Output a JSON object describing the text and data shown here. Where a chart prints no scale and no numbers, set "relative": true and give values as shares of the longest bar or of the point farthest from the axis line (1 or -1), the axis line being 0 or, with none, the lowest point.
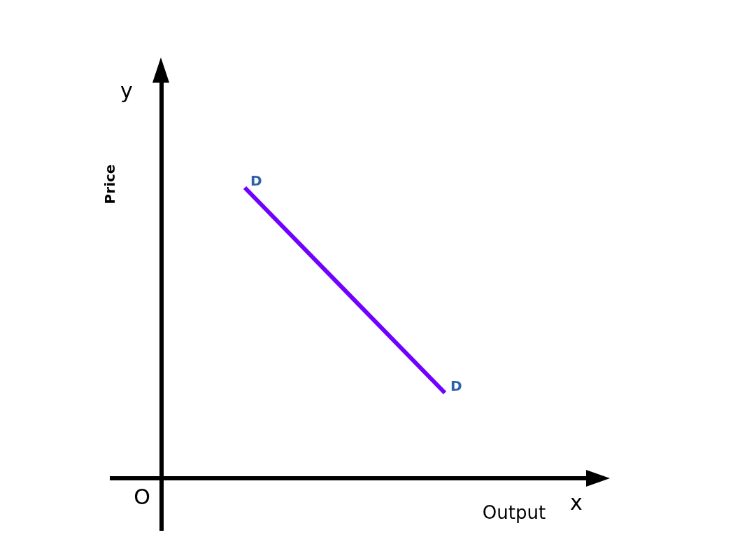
{
  "chart_data": {
    "type": "line",
    "relative": true,
    "categories": [
      null,
      null
    ],
    "xlabel": "Output",
    "ylabel": "Price",
    "grid": false,
    "marker": "none",
    "series": [
      {
        "color": "#7000ff",
        "values": [
          1,
          0.294
        ]
      }
    ],
    "annotations": [
      "D",
      "D",
      "O",
      "x",
      "y"
    ]
  }
}
